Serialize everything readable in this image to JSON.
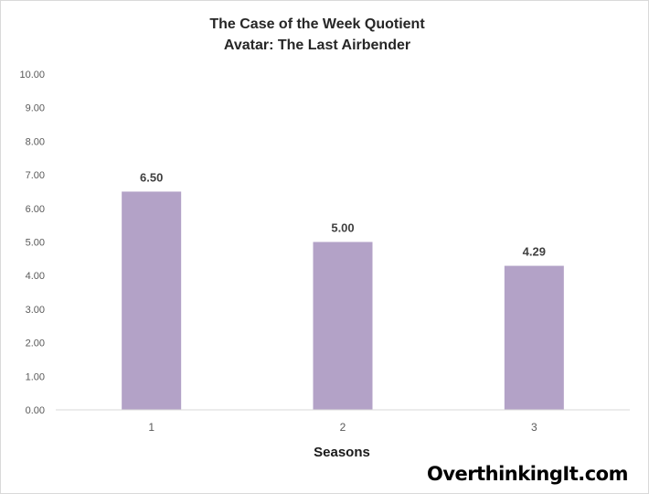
{
  "chart_data": {
    "type": "bar",
    "title": "The Case of the Week Quotient",
    "subtitle": "Avatar: The Last Airbender",
    "xlabel": "Seasons",
    "ylabel": "",
    "categories": [
      "1",
      "2",
      "3"
    ],
    "values": [
      6.5,
      5.0,
      4.29
    ],
    "data_labels": [
      "6.50",
      "5.00",
      "4.29"
    ],
    "ylim": [
      0,
      10
    ],
    "yticks": [
      "0.00",
      "1.00",
      "2.00",
      "3.00",
      "4.00",
      "5.00",
      "6.00",
      "7.00",
      "8.00",
      "9.00",
      "10.00"
    ],
    "grid": false,
    "legend": "none",
    "bar_color": "#b3a2c7"
  },
  "watermark": "OverthinkingIt.com"
}
